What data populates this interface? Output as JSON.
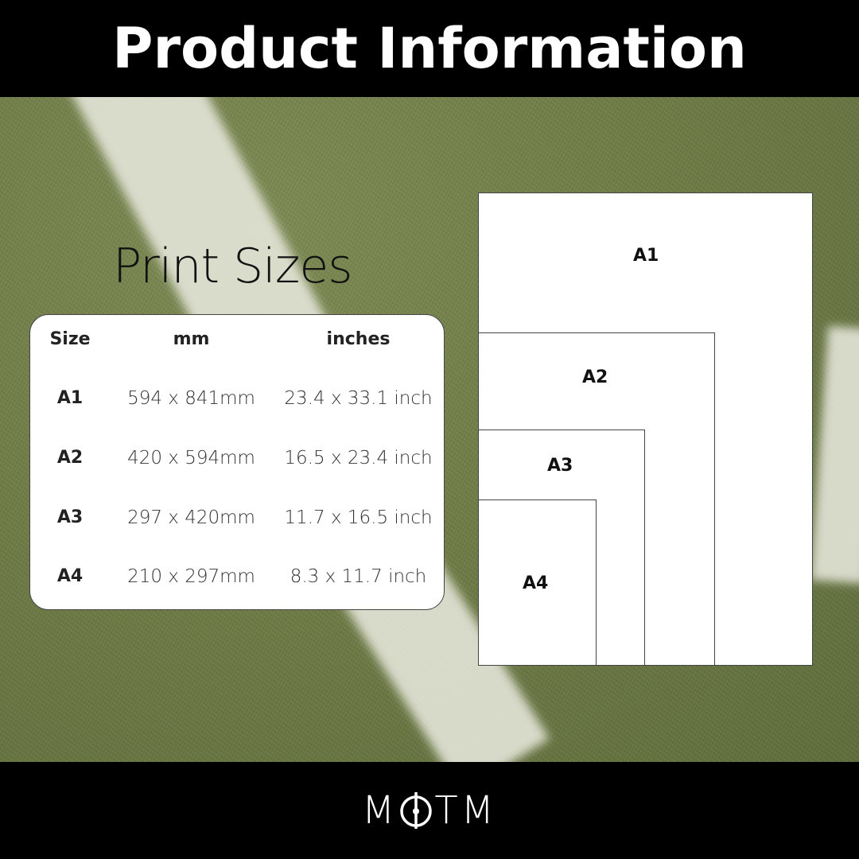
{
  "header": {
    "title": "Product Information"
  },
  "section_title": "Print Sizes",
  "table": {
    "columns": [
      "Size",
      "mm",
      "inches"
    ],
    "rows": [
      {
        "size": "A1",
        "mm": "594 x 841mm",
        "inches": "23.4 x 33.1 inch"
      },
      {
        "size": "A2",
        "mm": "420 x 594mm",
        "inches": "16.5 x 23.4 inch"
      },
      {
        "size": "A3",
        "mm": "297 x 420mm",
        "inches": "11.7 x 16.5 inch"
      },
      {
        "size": "A4",
        "mm": "210 x 297mm",
        "inches": "8.3 x 11.7 inch"
      }
    ]
  },
  "diagram": {
    "labels": [
      "A1",
      "A2",
      "A3",
      "A4"
    ]
  },
  "footer": {
    "logo": "MOTM"
  },
  "colors": {
    "bar": "#000000",
    "paper": "#ffffff",
    "grass": "#6e7b46"
  }
}
